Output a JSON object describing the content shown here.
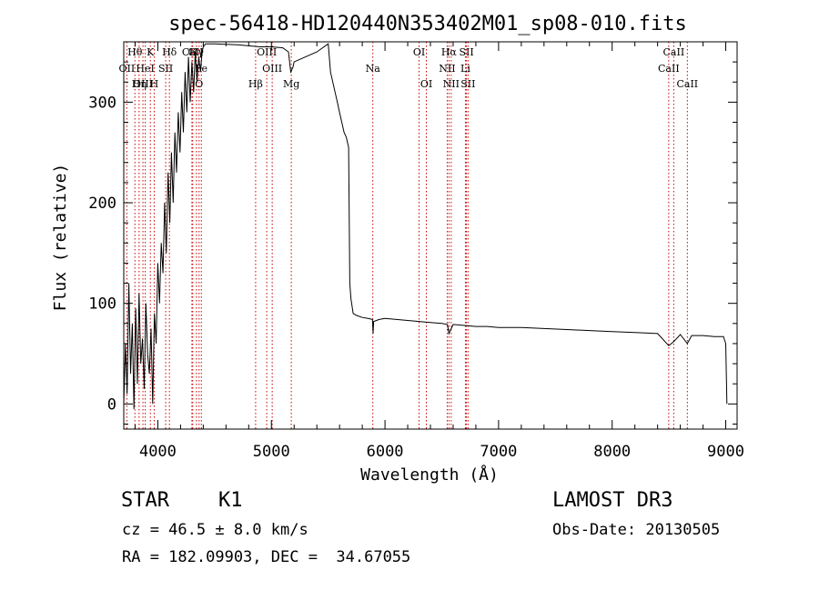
{
  "chart_data": {
    "type": "line",
    "title": "spec-56418-HD120440N353402M01_sp08-010.fits",
    "xlabel": "Wavelength (Å)",
    "ylabel": "Flux (relative)",
    "xlim": [
      3700,
      9100
    ],
    "ylim": [
      -25,
      360
    ],
    "x_ticks": [
      4000,
      5000,
      6000,
      7000,
      8000,
      9000
    ],
    "y_ticks": [
      0,
      100,
      200,
      300
    ],
    "grid": false,
    "line_color": "#000000",
    "line_marker_color": "#cc0000",
    "series": [
      {
        "x": [
          3700,
          3715,
          3730,
          3745,
          3760,
          3775,
          3790,
          3805,
          3820,
          3835,
          3850,
          3865,
          3880,
          3895,
          3910,
          3925,
          3940,
          3955,
          3970,
          3985,
          4000,
          4015,
          4030,
          4045,
          4060,
          4075,
          4090,
          4105,
          4120,
          4135,
          4150,
          4165,
          4180,
          4195,
          4210,
          4225,
          4240,
          4255,
          4270,
          4285,
          4300,
          4315,
          4330,
          4345,
          4360,
          4375,
          4390,
          4400,
          4420,
          4500,
          4700,
          4900,
          5000,
          5100,
          5150,
          5170,
          5190,
          5200,
          5300,
          5400,
          5500,
          5520,
          5540,
          5560,
          5580,
          5600,
          5620,
          5640,
          5660,
          5680,
          5690,
          5700,
          5720,
          5750,
          5800,
          5850,
          5890,
          5895,
          5900,
          5950,
          6000,
          6100,
          6200,
          6300,
          6400,
          6500,
          6550,
          6563,
          6600,
          6700,
          6800,
          6900,
          7000,
          7200,
          7400,
          7600,
          7800,
          8000,
          8200,
          8400,
          8498,
          8542,
          8600,
          8662,
          8700,
          8800,
          8900,
          8980,
          9000,
          9010
        ],
        "y": [
          0,
          60,
          10,
          120,
          30,
          80,
          -5,
          95,
          20,
          110,
          40,
          65,
          15,
          100,
          50,
          30,
          75,
          0,
          90,
          60,
          140,
          100,
          160,
          130,
          200,
          150,
          230,
          180,
          250,
          200,
          270,
          230,
          290,
          250,
          310,
          270,
          330,
          290,
          345,
          300,
          340,
          310,
          350,
          320,
          345,
          330,
          350,
          355,
          358,
          358,
          357,
          355,
          355,
          354,
          350,
          330,
          335,
          340,
          345,
          350,
          358,
          330,
          320,
          310,
          300,
          290,
          280,
          270,
          265,
          255,
          120,
          105,
          90,
          88,
          86,
          85,
          84,
          70,
          82,
          84,
          85,
          84,
          83,
          82,
          81,
          80,
          79,
          70,
          79,
          78,
          77,
          77,
          76,
          76,
          75,
          74,
          73,
          72,
          71,
          70,
          58,
          62,
          69,
          60,
          68,
          68,
          67,
          67,
          60,
          0
        ]
      }
    ],
    "line_labels": [
      {
        "text": "Hθ",
        "wave": 3798,
        "row": 1
      },
      {
        "text": "OII",
        "wave": 3727,
        "row": 2
      },
      {
        "text": "OIII",
        "wave": 3869,
        "row": 3
      },
      {
        "text": "K",
        "wave": 3934,
        "row": 1
      },
      {
        "text": "HeI",
        "wave": 3889,
        "row": 2
      },
      {
        "text": "Hη",
        "wave": 3835,
        "row": 3
      },
      {
        "text": "SII",
        "wave": 4069,
        "row": 2
      },
      {
        "text": "H",
        "wave": 3968,
        "row": 3
      },
      {
        "text": "Hδ",
        "wave": 4102,
        "row": 1
      },
      {
        "text": "G",
        "wave": 4300,
        "row": 1
      },
      {
        "text": "Hγ",
        "wave": 4340,
        "row": 1
      },
      {
        "text": "CaII",
        "wave": 4307,
        "row": 1
      },
      {
        "text": "Fe",
        "wave": 4383,
        "row": 2
      },
      {
        "text": "O",
        "wave": 4363,
        "row": 3
      },
      {
        "text": "OIII",
        "wave": 4959,
        "row": 1
      },
      {
        "text": "OIII",
        "wave": 5007,
        "row": 2
      },
      {
        "text": "Hβ",
        "wave": 4861,
        "row": 3
      },
      {
        "text": "Mg",
        "wave": 5175,
        "row": 3
      },
      {
        "text": "Na",
        "wave": 5893,
        "row": 2
      },
      {
        "text": "OI",
        "wave": 6300,
        "row": 1
      },
      {
        "text": "OI",
        "wave": 6364,
        "row": 3
      },
      {
        "text": "Hα",
        "wave": 6563,
        "row": 1
      },
      {
        "text": "SII",
        "wave": 6717,
        "row": 1
      },
      {
        "text": "NII",
        "wave": 6548,
        "row": 2
      },
      {
        "text": "Li",
        "wave": 6708,
        "row": 2
      },
      {
        "text": "NII",
        "wave": 6583,
        "row": 3
      },
      {
        "text": "SII",
        "wave": 6731,
        "row": 3
      },
      {
        "text": "CaII",
        "wave": 8542,
        "row": 1
      },
      {
        "text": "CaII",
        "wave": 8498,
        "row": 2
      },
      {
        "text": "CaII",
        "wave": 8662,
        "row": 3
      }
    ],
    "marker_lines": [
      3727,
      3798,
      3835,
      3869,
      3889,
      3934,
      3968,
      4069,
      4102,
      4300,
      4307,
      4340,
      4363,
      4383,
      4861,
      4959,
      5007,
      5175,
      5893,
      6300,
      6364,
      6548,
      6563,
      6583,
      6708,
      6717,
      6731,
      8498,
      8542,
      8662
    ]
  },
  "info": {
    "object_type": "STAR",
    "subclass": "K1",
    "survey": "LAMOST DR3",
    "cz": "cz = 46.5 ± 8.0 km/s",
    "obs_date": "Obs-Date: 20130505",
    "coords": "RA = 182.09903, DEC =  34.67055"
  }
}
